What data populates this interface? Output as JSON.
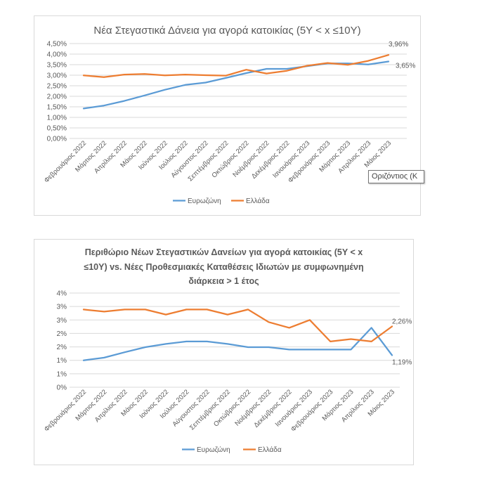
{
  "colors": {
    "eurozone": "#5b9bd5",
    "greece": "#ed7d31",
    "grid": "#d9d9d9",
    "text": "#595959"
  },
  "tooltip": {
    "text": "Οριζόντιος (Κ"
  },
  "chart_data": [
    {
      "type": "line",
      "title": "Νέα Στεγαστικά Δάνεια για αγορά κατοικίας (5Y < x ≤10Y)",
      "title_lines": [
        "Νέα Στεγαστικά Δάνεια για αγορά κατοικίας (5Y < x ≤10Y)"
      ],
      "xlabel": "",
      "ylabel": "",
      "ylim": [
        0,
        4.5
      ],
      "yticks": [
        0,
        0.5,
        1,
        1.5,
        2,
        2.5,
        3,
        3.5,
        4,
        4.5
      ],
      "ytick_labels": [
        "0,00%",
        "0,50%",
        "1,00%",
        "1,50%",
        "2,00%",
        "2,50%",
        "3,00%",
        "3,50%",
        "4,00%",
        "4,50%"
      ],
      "grid": true,
      "legend_position": "bottom",
      "categories": [
        "Φεβρουάριος 2022",
        "Μάρτιος 2022",
        "Απρίλιος 2022",
        "Μάιος 2022",
        "Ιούνιος 2022",
        "Ιούλιος 2022",
        "Αύγουστος 2022",
        "Σεπτέμβριος 2022",
        "Οκτώβριος 2022",
        "Νοέμβριος 2022",
        "Δεκέμβριος 2022",
        "Ιανουάριος 2023",
        "Φεβρουάριος 2023",
        "Μάρτιος 2023",
        "Απρίλιος 2023",
        "Μάιος 2023"
      ],
      "series": [
        {
          "name": "Ευρωζώνη",
          "color": "#5b9bd5",
          "values": [
            1.42,
            1.56,
            1.78,
            2.04,
            2.31,
            2.54,
            2.65,
            2.87,
            3.1,
            3.3,
            3.3,
            3.43,
            3.56,
            3.56,
            3.51,
            3.65
          ],
          "end_label": "3,65%"
        },
        {
          "name": "Ελλάδα",
          "color": "#ed7d31",
          "values": [
            2.99,
            2.91,
            3.03,
            3.06,
            2.99,
            3.03,
            3.0,
            2.98,
            3.26,
            3.08,
            3.21,
            3.45,
            3.58,
            3.49,
            3.68,
            3.96
          ],
          "end_label": "3,96%"
        }
      ]
    },
    {
      "type": "line",
      "title": "Περιθώριο Νέων Στεγαστικών Δανείων για αγορά κατοικίας (5Y < x ≤10Y) vs. Νέες Προθεσμιακές Καταθέσεις Ιδιωτών με συμφωνημένη διάρκεια > 1 έτος",
      "title_lines": [
        "Περιθώριο Νέων Στεγαστικών Δανείων για αγορά κατοικίας (5Y < x",
        "≤10Y) vs. Νέες Προθεσμιακές Καταθέσεις Ιδιωτών με συμφωνημένη",
        "διάρκεια > 1 έτος"
      ],
      "xlabel": "",
      "ylabel": "",
      "ylim": [
        0,
        3.5
      ],
      "yticks": [
        0,
        0.5,
        1,
        1.5,
        2,
        2.5,
        3,
        3.5
      ],
      "ytick_labels": [
        "0%",
        "1%",
        "1%",
        "2%",
        "2%",
        "3%",
        "3%",
        "4%"
      ],
      "grid": true,
      "legend_position": "bottom",
      "categories": [
        "Φεβρουάριος 2022",
        "Μάρτιος 2022",
        "Απρίλιος 2022",
        "Μάιος 2022",
        "Ιούνιος 2022",
        "Ιούλιος 2022",
        "Αύγουστος 2022",
        "Σεπτέμβριος 2022",
        "Οκτώβριος 2022",
        "Νοέμβριος 2022",
        "Δεκέμβριος 2022",
        "Ιανουάριος 2023",
        "Φεβρουάριος 2023",
        "Μάρτιος 2023",
        "Απρίλιος 2023",
        "Μάιος 2023"
      ],
      "series": [
        {
          "name": "Ευρωζώνη",
          "color": "#5b9bd5",
          "values": [
            1.0,
            1.1,
            1.3,
            1.49,
            1.61,
            1.7,
            1.7,
            1.61,
            1.49,
            1.49,
            1.4,
            1.4,
            1.4,
            1.4,
            2.21,
            1.19
          ],
          "end_label": "1,19%"
        },
        {
          "name": "Ελλάδα",
          "color": "#ed7d31",
          "values": [
            2.89,
            2.81,
            2.89,
            2.89,
            2.7,
            2.89,
            2.89,
            2.7,
            2.89,
            2.42,
            2.21,
            2.5,
            1.7,
            1.79,
            1.7,
            2.26
          ],
          "end_label": "2,26%"
        }
      ]
    }
  ]
}
